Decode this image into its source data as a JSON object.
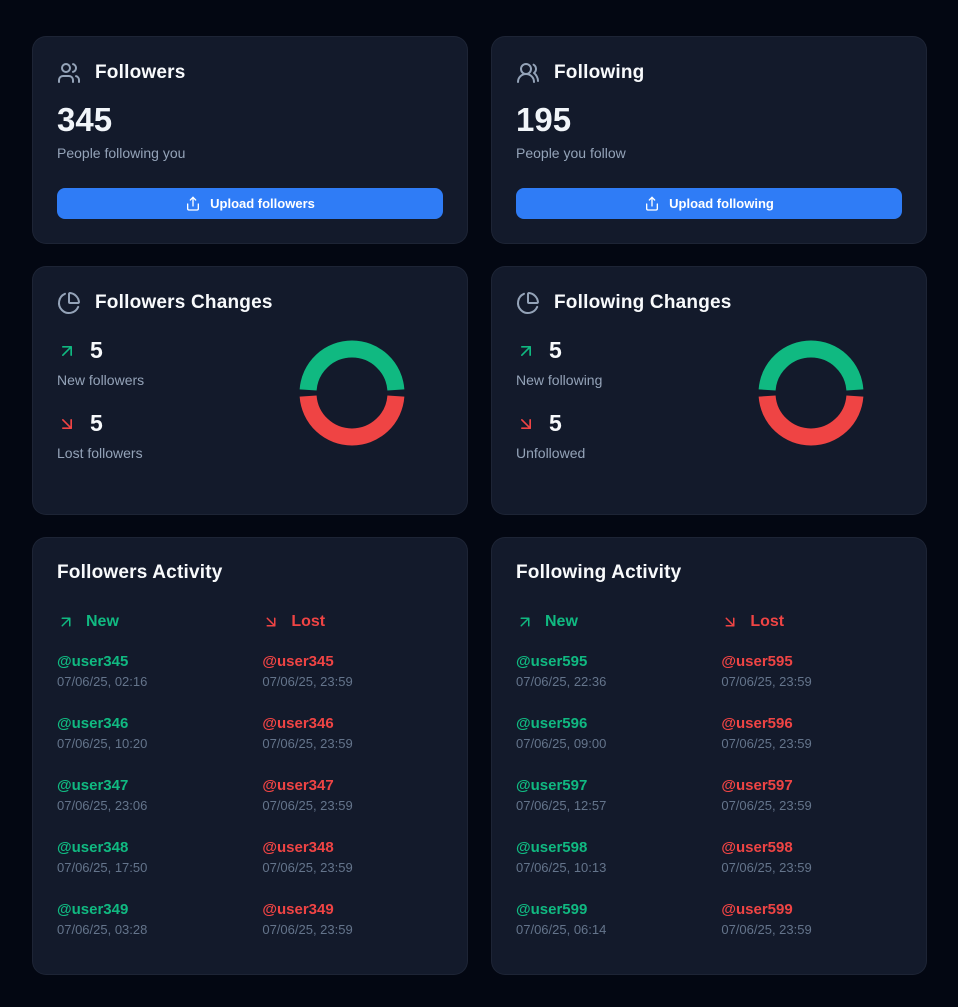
{
  "colors": {
    "page_bg": "#030712",
    "card_bg": "#131a2b",
    "accent_blue": "#2f7cf6",
    "green": "#10b981",
    "red": "#ef4444",
    "text_primary": "#f8fafc",
    "text_muted": "#94a3b8",
    "timestamp_gray": "#64748b"
  },
  "followers_card": {
    "title": "Followers",
    "icon": "users-icon",
    "count": "345",
    "subtitle": "People following you",
    "button_label": "Upload followers"
  },
  "following_card": {
    "title": "Following",
    "icon": "users-round-icon",
    "count": "195",
    "subtitle": "People you follow",
    "button_label": "Upload following"
  },
  "followers_changes": {
    "title": "Followers Changes",
    "icon": "pie-chart-icon",
    "new_count": "5",
    "new_label": "New followers",
    "lost_count": "5",
    "lost_label": "Lost followers"
  },
  "following_changes": {
    "title": "Following Changes",
    "icon": "pie-chart-icon",
    "new_count": "5",
    "new_label": "New following",
    "lost_count": "5",
    "lost_label": "Unfollowed"
  },
  "followers_activity": {
    "title": "Followers Activity",
    "new_header": "New",
    "lost_header": "Lost",
    "new_items": [
      {
        "username": "@user345",
        "timestamp": "07/06/25, 02:16"
      },
      {
        "username": "@user346",
        "timestamp": "07/06/25, 10:20"
      },
      {
        "username": "@user347",
        "timestamp": "07/06/25, 23:06"
      },
      {
        "username": "@user348",
        "timestamp": "07/06/25, 17:50"
      },
      {
        "username": "@user349",
        "timestamp": "07/06/25, 03:28"
      }
    ],
    "lost_items": [
      {
        "username": "@user345",
        "timestamp": "07/06/25, 23:59"
      },
      {
        "username": "@user346",
        "timestamp": "07/06/25, 23:59"
      },
      {
        "username": "@user347",
        "timestamp": "07/06/25, 23:59"
      },
      {
        "username": "@user348",
        "timestamp": "07/06/25, 23:59"
      },
      {
        "username": "@user349",
        "timestamp": "07/06/25, 23:59"
      }
    ]
  },
  "following_activity": {
    "title": "Following Activity",
    "new_header": "New",
    "lost_header": "Lost",
    "new_items": [
      {
        "username": "@user595",
        "timestamp": "07/06/25, 22:36"
      },
      {
        "username": "@user596",
        "timestamp": "07/06/25, 09:00"
      },
      {
        "username": "@user597",
        "timestamp": "07/06/25, 12:57"
      },
      {
        "username": "@user598",
        "timestamp": "07/06/25, 10:13"
      },
      {
        "username": "@user599",
        "timestamp": "07/06/25, 06:14"
      }
    ],
    "lost_items": [
      {
        "username": "@user595",
        "timestamp": "07/06/25, 23:59"
      },
      {
        "username": "@user596",
        "timestamp": "07/06/25, 23:59"
      },
      {
        "username": "@user597",
        "timestamp": "07/06/25, 23:59"
      },
      {
        "username": "@user598",
        "timestamp": "07/06/25, 23:59"
      },
      {
        "username": "@user599",
        "timestamp": "07/06/25, 23:59"
      }
    ]
  },
  "chart_data": [
    {
      "type": "pie",
      "style": "donut",
      "title": "Followers Changes",
      "categories": [
        "New followers",
        "Lost followers"
      ],
      "values": [
        5,
        5
      ],
      "colors": [
        "#10b981",
        "#ef4444"
      ],
      "legend": "none"
    },
    {
      "type": "pie",
      "style": "donut",
      "title": "Following Changes",
      "categories": [
        "New following",
        "Unfollowed"
      ],
      "values": [
        5,
        5
      ],
      "colors": [
        "#10b981",
        "#ef4444"
      ],
      "legend": "none"
    }
  ]
}
